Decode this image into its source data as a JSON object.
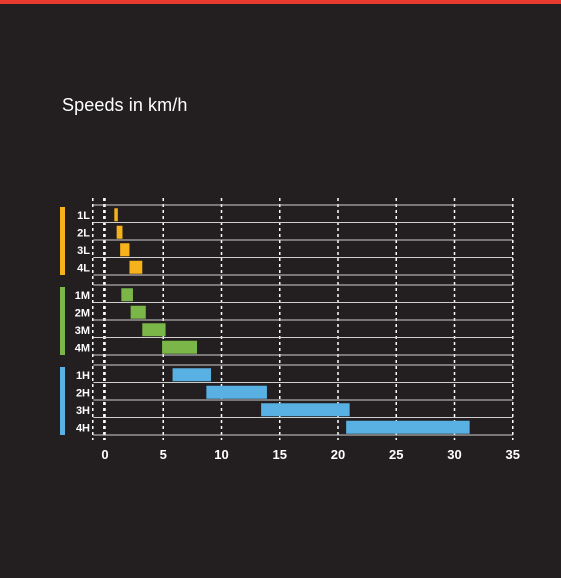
{
  "page": {
    "top_bar_color": "#e83a2f",
    "background": "#231f20"
  },
  "chart_data": {
    "type": "bar",
    "subtype": "floating-range-horizontal",
    "title": "Speeds in km/h",
    "xlabel": "",
    "ylabel": "",
    "xlim": [
      -1,
      35
    ],
    "x_ticks": [
      0,
      5,
      10,
      15,
      20,
      25,
      30,
      35
    ],
    "grid": true,
    "groups": [
      {
        "color": "#f5b21a",
        "items": [
          {
            "label": "1L",
            "range": [
              0.8,
              1.1
            ]
          },
          {
            "label": "2L",
            "range": [
              1.0,
              1.5
            ]
          },
          {
            "label": "3L",
            "range": [
              1.3,
              2.1
            ]
          },
          {
            "label": "4L",
            "range": [
              2.1,
              3.2
            ]
          }
        ]
      },
      {
        "color": "#7ab648",
        "items": [
          {
            "label": "1M",
            "range": [
              1.4,
              2.4
            ]
          },
          {
            "label": "2M",
            "range": [
              2.2,
              3.5
            ]
          },
          {
            "label": "3M",
            "range": [
              3.2,
              5.2
            ]
          },
          {
            "label": "4M",
            "range": [
              4.9,
              7.9
            ]
          }
        ]
      },
      {
        "color": "#58b0e3",
        "items": [
          {
            "label": "1H",
            "range": [
              5.8,
              9.1
            ]
          },
          {
            "label": "2H",
            "range": [
              8.7,
              13.9
            ]
          },
          {
            "label": "3H",
            "range": [
              13.4,
              21.0
            ]
          },
          {
            "label": "4H",
            "range": [
              20.7,
              31.3
            ]
          }
        ]
      }
    ]
  }
}
